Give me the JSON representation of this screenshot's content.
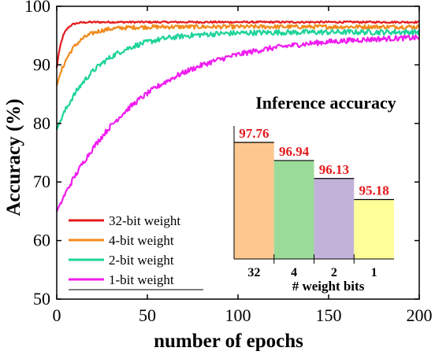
{
  "chart_data": [
    {
      "type": "line",
      "xlabel": "number of epochs",
      "ylabel": "Accuracy (%)",
      "xlim": [
        0,
        200
      ],
      "ylim": [
        50,
        100
      ],
      "xticks": [
        "0",
        "50",
        "100",
        "150",
        "200"
      ],
      "yticks": [
        "50",
        "60",
        "70",
        "80",
        "90",
        "100"
      ],
      "legend_position": "bottom-left",
      "series": [
        {
          "name": "32-bit weight",
          "color": "#e31a1c",
          "start": 89.5,
          "end": 97.3,
          "tau": 3.0,
          "noise": 0.15
        },
        {
          "name": "4-bit weight",
          "color": "#f28a1c",
          "start": 86.5,
          "end": 96.5,
          "tau": 9.0,
          "noise": 0.35
        },
        {
          "name": "2-bit weight",
          "color": "#1ed39a",
          "start": 79.0,
          "end": 95.6,
          "tau": 22.0,
          "noise": 0.45
        },
        {
          "name": "1-bit weight",
          "color": "#f01cf0",
          "start": 65.0,
          "end": 95.0,
          "tau": 45.0,
          "noise": 0.45
        }
      ]
    },
    {
      "type": "bar",
      "title": "Inference accuracy",
      "xlabel": "# weight bits",
      "categories": [
        "32",
        "4",
        "2",
        "1"
      ],
      "values": [
        97.76,
        96.94,
        96.13,
        95.18
      ],
      "value_labels": [
        "97.76",
        "96.94",
        "96.13",
        "95.18"
      ],
      "ylim": [
        92.5,
        98.5
      ],
      "colors": [
        "#fcc88f",
        "#9bdb98",
        "#c2b2d9",
        "#ffff99"
      ],
      "label_color": "#e31a1c"
    }
  ]
}
